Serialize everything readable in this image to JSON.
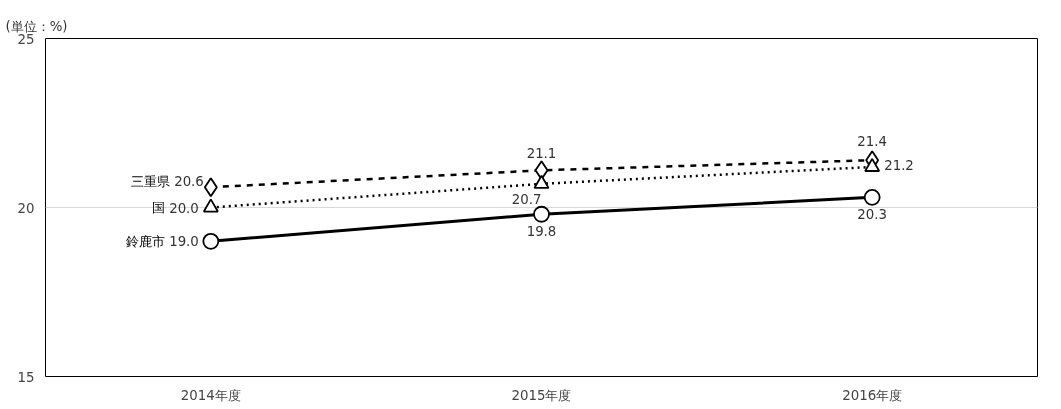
{
  "chart_data": {
    "type": "line",
    "annotations": [
      "(単位：%)"
    ],
    "categories": [
      "2014年度",
      "2015年度",
      "2016年度"
    ],
    "ylim": [
      15,
      25
    ],
    "yticks": [
      15,
      20,
      25
    ],
    "grid": "y",
    "legend": false,
    "series": [
      {
        "name": "三重県",
        "color": "#000000",
        "values": [
          20.6,
          21.1,
          21.4
        ],
        "value_labels": [
          "20.6",
          "21.1",
          "21.4"
        ],
        "marker": "diamond",
        "line_style": "dashed"
      },
      {
        "name": "国",
        "color": "#000000",
        "values": [
          20.0,
          20.7,
          21.2
        ],
        "value_labels": [
          "20.0",
          "20.7",
          "21.2"
        ],
        "marker": "triangle",
        "line_style": "dotted"
      },
      {
        "name": "鈴鹿市",
        "color": "#000000",
        "values": [
          19.0,
          19.8,
          20.3
        ],
        "value_labels": [
          "19.0",
          "19.8",
          "20.3"
        ],
        "marker": "circle",
        "line_style": "solid"
      }
    ]
  }
}
